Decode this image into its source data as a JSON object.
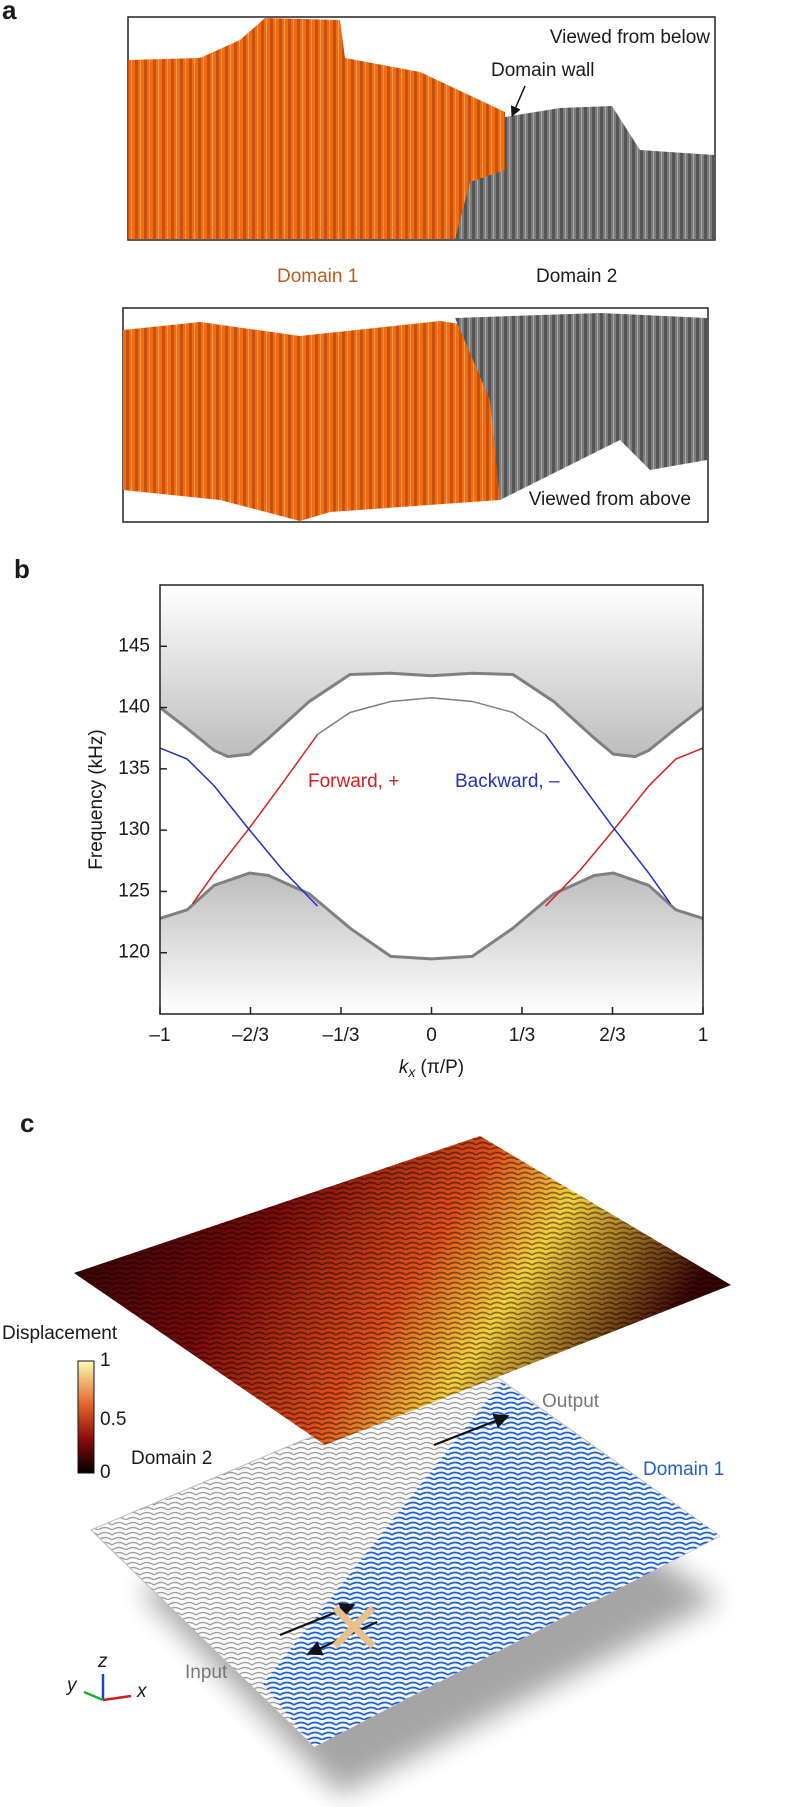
{
  "panel_a": {
    "letter": "a",
    "top_view": "Viewed from below",
    "domain_wall": "Domain wall",
    "domain_1": "Domain 1",
    "domain_2": "Domain 2",
    "bottom_view": "Viewed from above"
  },
  "panel_b": {
    "letter": "b"
  },
  "chart_data": {
    "type": "line",
    "y_label": "Frequency (kHz)",
    "x_label": {
      "symbol": "k",
      "subscript": "x",
      "unit": "(π/P)"
    },
    "xlim": [
      -1,
      1
    ],
    "ylim": [
      115,
      150
    ],
    "xticks": [
      {
        "value": -1,
        "label": "–1"
      },
      {
        "value": -0.6667,
        "label": "–2/3"
      },
      {
        "value": -0.3333,
        "label": "–1/3"
      },
      0,
      {
        "value": 0.3333,
        "label": "1/3"
      },
      {
        "value": 0.6667,
        "label": "2/3"
      },
      1
    ],
    "yticks": [
      120,
      125,
      130,
      135,
      140,
      145
    ],
    "series": [
      {
        "color": "#808080",
        "band": "upper",
        "x": [
          -1,
          -0.9,
          -0.8,
          -0.75,
          -0.67,
          -0.6,
          -0.45,
          -0.3,
          -0.15,
          0,
          0.15,
          0.3,
          0.45,
          0.6,
          0.67,
          0.75,
          0.8,
          0.9,
          1
        ],
        "values": [
          140,
          138.3,
          136.5,
          136,
          136.2,
          137.5,
          140.5,
          142.7,
          142.8,
          142.6,
          142.8,
          142.7,
          140.5,
          137.5,
          136.2,
          136,
          136.5,
          138.3,
          140
        ]
      },
      {
        "color": "#808080",
        "band": "lower",
        "x": [
          -1,
          -0.9,
          -0.8,
          -0.67,
          -0.6,
          -0.45,
          -0.3,
          -0.15,
          0,
          0.15,
          0.3,
          0.45,
          0.6,
          0.67,
          0.8,
          0.9,
          1
        ],
        "values": [
          122.8,
          123.5,
          125.5,
          126.5,
          126.3,
          124.8,
          122,
          119.7,
          119.5,
          119.7,
          122,
          124.8,
          126.3,
          126.5,
          125.5,
          123.5,
          122.8
        ]
      },
      {
        "color": "#808080",
        "x": [
          -0.42,
          -0.3,
          -0.15,
          0,
          0.15,
          0.3,
          0.42
        ],
        "values": [
          137.8,
          139.6,
          140.5,
          140.8,
          140.5,
          139.6,
          137.8
        ]
      },
      {
        "name": "Forward, +",
        "color": "#d42020",
        "x": [
          -0.88,
          -0.8,
          -0.67,
          -0.55,
          -0.42,
          0,
          0.42,
          0.55,
          0.67,
          0.8,
          0.9,
          1
        ],
        "values": [
          124,
          126.5,
          130.2,
          133.8,
          137.8,
          null,
          123.8,
          126.8,
          130,
          133.6,
          135.8,
          136.7
        ]
      },
      {
        "name": "Backward, –",
        "color": "#2030c8",
        "x": [
          -1,
          -0.9,
          -0.8,
          -0.67,
          -0.55,
          -0.42,
          0,
          0.42,
          0.55,
          0.67,
          0.8,
          0.88
        ],
        "values": [
          136.7,
          135.8,
          133.6,
          130,
          126.8,
          123.8,
          null,
          137.8,
          133.8,
          130.2,
          126.5,
          124
        ]
      }
    ]
  },
  "panel_c": {
    "letter": "c",
    "colorbar": {
      "title": "Displacement",
      "ticks": [
        "1",
        "0.5",
        "0"
      ]
    },
    "domain_2": "Domain 2",
    "domain_1": "Domain 1",
    "output": "Output",
    "input": "Input",
    "axes": {
      "z": "z",
      "y": "y",
      "x": "x"
    }
  }
}
